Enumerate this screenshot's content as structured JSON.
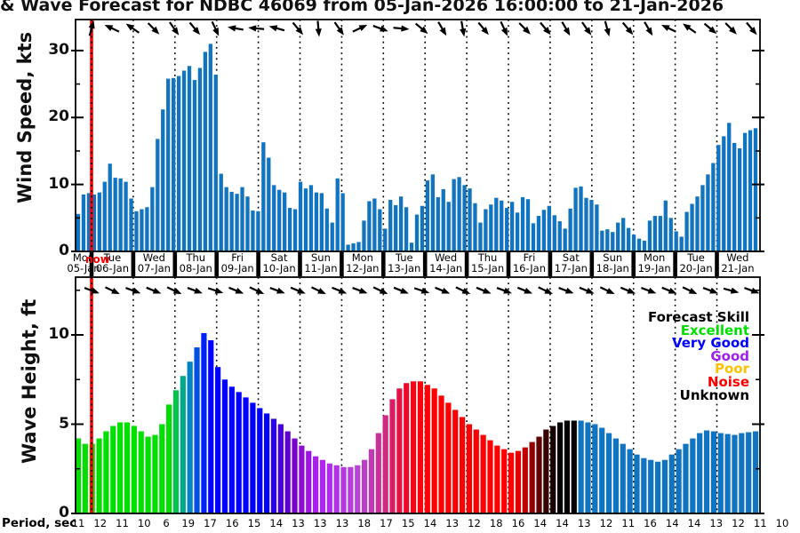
{
  "title": "& Wave Forecast for NDBC 46069 from 05-Jan-2026 16:00:00 to 21-Jan-2026",
  "now_marker": {
    "label": "now",
    "color": "#FF0000"
  },
  "colors": {
    "wind_bar": "#1074C0",
    "now_line": "#FF0000",
    "grid": "#000000",
    "background": "#FFFFFF"
  },
  "dates": [
    {
      "day": "Mon",
      "date": "05-Jan"
    },
    {
      "day": "Tue",
      "date": "06-Jan"
    },
    {
      "day": "Wed",
      "date": "07-Jan"
    },
    {
      "day": "Thu",
      "date": "08-Jan"
    },
    {
      "day": "Fri",
      "date": "09-Jan"
    },
    {
      "day": "Sat",
      "date": "10-Jan"
    },
    {
      "day": "Sun",
      "date": "11-Jan"
    },
    {
      "day": "Mon",
      "date": "12-Jan"
    },
    {
      "day": "Tue",
      "date": "13-Jan"
    },
    {
      "day": "Wed",
      "date": "14-Jan"
    },
    {
      "day": "Thu",
      "date": "15-Jan"
    },
    {
      "day": "Fri",
      "date": "16-Jan"
    },
    {
      "day": "Sat",
      "date": "17-Jan"
    },
    {
      "day": "Sun",
      "date": "18-Jan"
    },
    {
      "day": "Mon",
      "date": "19-Jan"
    },
    {
      "day": "Tue",
      "date": "20-Jan"
    },
    {
      "day": "Wed",
      "date": "21-Jan"
    }
  ],
  "legend": {
    "title": "Forecast Skill",
    "entries": [
      {
        "label": "Excellent",
        "color": "#00DF00"
      },
      {
        "label": "Very Good",
        "color": "#0000FF"
      },
      {
        "label": "Good",
        "color": "#A020F0"
      },
      {
        "label": "Poor",
        "color": "#FFC000"
      },
      {
        "label": "Noise",
        "color": "#FF0000"
      },
      {
        "label": "Unknown",
        "color": "#000000"
      }
    ]
  },
  "period": {
    "label": "Period, sec",
    "values": [
      11,
      12,
      11,
      10,
      6,
      19,
      17,
      16,
      15,
      14,
      13,
      13,
      13,
      18,
      17,
      15,
      14,
      13,
      12,
      18,
      16,
      14,
      14,
      13,
      12,
      11,
      16,
      14,
      14,
      13,
      12,
      11,
      10
    ]
  },
  "chart_data": [
    {
      "type": "bar",
      "title": "Wind Speed forecast (3-hourly)",
      "ylabel": "Wind Speed, kts",
      "yticks": [
        0,
        10,
        20,
        30
      ],
      "yticks_minor": [
        5,
        15,
        25
      ],
      "ylim": [
        0,
        34.5
      ],
      "x_start": "05-Jan 16:00",
      "interval_hours": 3,
      "bar_color": "#1074C0",
      "values": [
        5.6,
        8.5,
        8.7,
        8.5,
        8.8,
        10.4,
        13.1,
        11.0,
        10.9,
        10.4,
        7.9,
        6.0,
        6.3,
        6.6,
        9.6,
        16.8,
        21.2,
        25.8,
        25.9,
        26.2,
        27.0,
        27.7,
        25.6,
        27.4,
        29.8,
        31.0,
        26.4,
        11.6,
        9.6,
        8.9,
        8.6,
        9.6,
        8.2,
        6.1,
        6.0,
        16.3,
        14.0,
        9.9,
        9.2,
        8.8,
        6.5,
        6.3,
        10.4,
        9.4,
        9.9,
        8.8,
        8.7,
        6.4,
        4.3,
        10.9,
        8.7,
        1.0,
        1.2,
        1.4,
        4.6,
        7.5,
        7.9,
        6.3,
        3.4,
        7.7,
        6.9,
        8.2,
        6.6,
        1.3,
        5.5,
        6.8,
        10.6,
        11.5,
        8.1,
        9.3,
        7.4,
        10.8,
        11.1,
        9.9,
        9.4,
        7.2,
        4.3,
        6.3,
        7.0,
        8.0,
        7.6,
        6.5,
        7.4,
        5.8,
        8.1,
        7.8,
        4.2,
        5.3,
        6.2,
        6.8,
        5.4,
        4.5,
        3.4,
        6.4,
        9.5,
        9.7,
        8.0,
        7.7,
        7.0,
        3.1,
        3.3,
        2.9,
        4.3,
        5.0,
        3.5,
        2.5,
        1.9,
        1.6,
        4.6,
        5.3,
        5.3,
        7.6,
        5.0,
        3.0,
        2.2,
        5.9,
        7.1,
        8.2,
        9.9,
        11.5,
        13.2,
        15.9,
        17.2,
        19.2,
        16.2,
        15.4,
        17.7,
        18.1,
        18.4
      ],
      "direction_arrows_deg_cw_from_east": [
        285,
        205,
        215,
        45,
        55,
        50,
        65,
        190,
        185,
        195,
        50,
        85,
        55,
        335,
        20,
        5,
        40,
        60,
        80,
        50,
        65,
        45,
        50,
        60,
        55,
        75,
        50,
        60,
        205,
        215,
        40,
        45,
        50
      ]
    },
    {
      "type": "bar",
      "title": "Wave Height forecast colored by forecast skill",
      "ylabel": "Wave Height, ft",
      "yticks": [
        0,
        5,
        10
      ],
      "yticks_minor": [
        2.5,
        7.5,
        12.5
      ],
      "ylim": [
        0,
        13.3
      ],
      "x_start": "05-Jan 16:00",
      "interval_hours": 4,
      "values": [
        4.2,
        3.9,
        3.9,
        4.2,
        4.6,
        4.9,
        5.1,
        5.1,
        4.9,
        4.6,
        4.3,
        4.4,
        5.0,
        6.1,
        6.9,
        7.7,
        8.5,
        9.3,
        10.1,
        9.7,
        8.2,
        7.5,
        7.1,
        6.8,
        6.5,
        6.2,
        5.9,
        5.6,
        5.3,
        5.0,
        4.6,
        4.2,
        3.8,
        3.5,
        3.2,
        3.0,
        2.8,
        2.7,
        2.6,
        2.6,
        2.7,
        3.0,
        3.6,
        4.5,
        5.5,
        6.4,
        7.0,
        7.3,
        7.4,
        7.4,
        7.2,
        7.0,
        6.6,
        6.2,
        5.8,
        5.4,
        5.0,
        4.7,
        4.4,
        4.1,
        3.8,
        3.6,
        3.4,
        3.5,
        3.7,
        4.0,
        4.3,
        4.7,
        4.9,
        5.1,
        5.2,
        5.2,
        5.2,
        5.1,
        5.0,
        4.8,
        4.5,
        4.2,
        3.9,
        3.6,
        3.3,
        3.1,
        3.0,
        2.9,
        3.0,
        3.3,
        3.6,
        3.9,
        4.2,
        4.5,
        4.65,
        4.6,
        4.5,
        4.45,
        4.4,
        4.5,
        4.55,
        4.6
      ],
      "skill_colors": [
        "#00DF00",
        "#00DF00",
        "#00DF00",
        "#00DF00",
        "#00DF00",
        "#00DF00",
        "#00DF00",
        "#00DF00",
        "#00DF00",
        "#00DF00",
        "#00DF00",
        "#00DF00",
        "#00DF00",
        "#00DF00",
        "#00C44B",
        "#00A98C",
        "#0083C3",
        "#0050E2",
        "#0022F7",
        "#0000FF",
        "#0000FF",
        "#0000FF",
        "#0000FF",
        "#0000FF",
        "#0000FF",
        "#0000FF",
        "#0000FF",
        "#0000FF",
        "#2B00EF",
        "#4700E2",
        "#6000D5",
        "#7A00CA",
        "#8F0BD2",
        "#9C17DE",
        "#A821E8",
        "#AE27EC",
        "#B02CEA",
        "#B232E6",
        "#B438E2",
        "#B63EDE",
        "#B944D8",
        "#BE3DC8",
        "#C437B2",
        "#CA2F9A",
        "#D12781",
        "#DA1C62",
        "#E31242",
        "#EA0B2C",
        "#F2061A",
        "#F8030D",
        "#FC0106",
        "#FF0000",
        "#FF0000",
        "#FF0000",
        "#FF0000",
        "#FF0000",
        "#FF0000",
        "#FF0000",
        "#FF0000",
        "#FF0000",
        "#FF0000",
        "#FF0000",
        "#FF0000",
        "#E40000",
        "#BE0000",
        "#900000",
        "#600000",
        "#380000",
        "#180000",
        "#000000",
        "#000000",
        "#000000",
        "#1074C0",
        "#1074C0",
        "#1074C0",
        "#1074C0",
        "#1074C0",
        "#1074C0",
        "#1074C0",
        "#1074C0",
        "#1074C0",
        "#1074C0",
        "#1074C0",
        "#1074C0",
        "#1074C0",
        "#1074C0",
        "#1074C0",
        "#1074C0",
        "#1074C0",
        "#1074C0",
        "#1074C0",
        "#1074C0",
        "#1074C0",
        "#1074C0",
        "#1074C0",
        "#1074C0",
        "#1074C0",
        "#1074C0"
      ],
      "direction_arrows_deg_cw_from_east": [
        20,
        25,
        20,
        22,
        25,
        20,
        18,
        22,
        25,
        20,
        22,
        25,
        22,
        20,
        25,
        22,
        18,
        22,
        25,
        22,
        20,
        22,
        25,
        20,
        22,
        25,
        22,
        20,
        22,
        25,
        20,
        15,
        20
      ]
    }
  ]
}
